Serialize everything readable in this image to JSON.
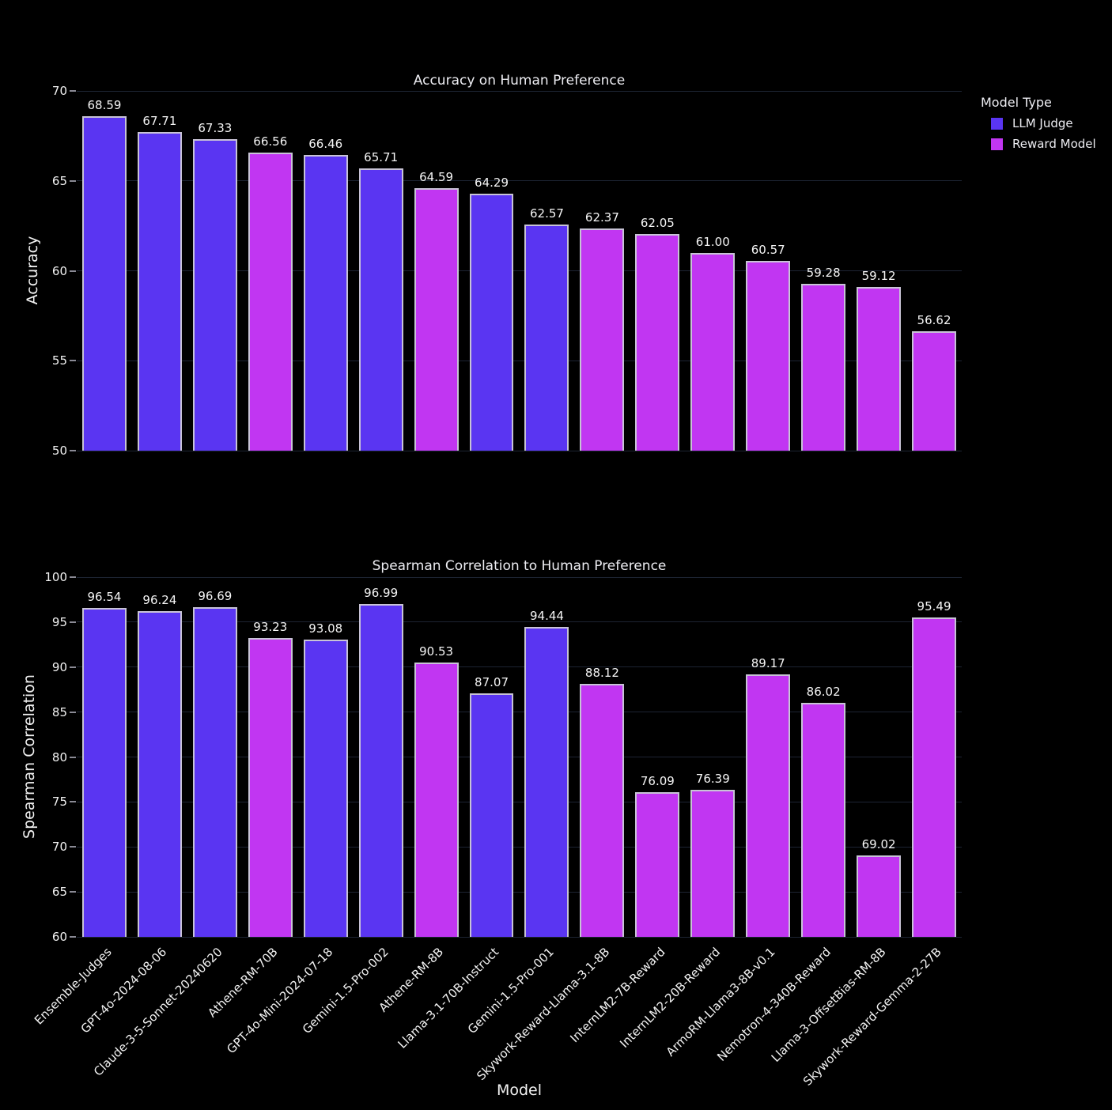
{
  "background": "#000000",
  "text_color": "#f2f2f2",
  "grid_color": "#1d2433",
  "legend": {
    "title": "Model Type",
    "items": [
      {
        "label": "LLM Judge",
        "color": "#5a35f2"
      },
      {
        "label": "Reward Model",
        "color": "#c136f2"
      }
    ]
  },
  "xlabel": "Model",
  "chart_data": [
    {
      "type": "bar",
      "title": "Accuracy on Human Preference",
      "xlabel": "",
      "ylabel": "Accuracy",
      "ylim": [
        50,
        70
      ],
      "yticks": [
        50,
        55,
        60,
        65,
        70
      ],
      "grid": true,
      "show_x_tick_labels": false,
      "categories": [
        "Ensemble-Judges",
        "GPT-4o-2024-08-06",
        "Claude-3-5-Sonnet-20240620",
        "Athene-RM-70B",
        "GPT-4o-Mini-2024-07-18",
        "Gemini-1.5-Pro-002",
        "Athene-RM-8B",
        "Llama-3.1-70B-Instruct",
        "Gemini-1.5-Pro-001",
        "Skywork-Reward-Llama-3.1-8B",
        "InternLM2-7B-Reward",
        "InternLM2-20B-Reward",
        "ArmoRM-Llama3-8B-v0.1",
        "Nemotron-4-340B-Reward",
        "Llama-3-OffsetBias-RM-8B",
        "Skywork-Reward-Gemma-2-27B"
      ],
      "types": [
        "LLM Judge",
        "LLM Judge",
        "LLM Judge",
        "Reward Model",
        "LLM Judge",
        "LLM Judge",
        "Reward Model",
        "LLM Judge",
        "LLM Judge",
        "Reward Model",
        "Reward Model",
        "Reward Model",
        "Reward Model",
        "Reward Model",
        "Reward Model",
        "Reward Model"
      ],
      "series": [
        {
          "name": "Accuracy",
          "values": [
            68.59,
            67.71,
            67.33,
            66.56,
            66.46,
            65.71,
            64.59,
            64.29,
            62.57,
            62.37,
            62.05,
            61.0,
            60.57,
            59.28,
            59.12,
            56.62
          ]
        }
      ],
      "legend_position": "top-right"
    },
    {
      "type": "bar",
      "title": "Spearman Correlation to Human Preference",
      "xlabel": "Model",
      "ylabel": "Spearman Correlation",
      "ylim": [
        60,
        100
      ],
      "yticks": [
        60,
        65,
        70,
        75,
        80,
        85,
        90,
        95,
        100
      ],
      "grid": true,
      "show_x_tick_labels": true,
      "categories": [
        "Ensemble-Judges",
        "GPT-4o-2024-08-06",
        "Claude-3-5-Sonnet-20240620",
        "Athene-RM-70B",
        "GPT-4o-Mini-2024-07-18",
        "Gemini-1.5-Pro-002",
        "Athene-RM-8B",
        "Llama-3.1-70B-Instruct",
        "Gemini-1.5-Pro-001",
        "Skywork-Reward-Llama-3.1-8B",
        "InternLM2-7B-Reward",
        "InternLM2-20B-Reward",
        "ArmoRM-Llama3-8B-v0.1",
        "Nemotron-4-340B-Reward",
        "Llama-3-OffsetBias-RM-8B",
        "Skywork-Reward-Gemma-2-27B"
      ],
      "types": [
        "LLM Judge",
        "LLM Judge",
        "LLM Judge",
        "Reward Model",
        "LLM Judge",
        "LLM Judge",
        "Reward Model",
        "LLM Judge",
        "LLM Judge",
        "Reward Model",
        "Reward Model",
        "Reward Model",
        "Reward Model",
        "Reward Model",
        "Reward Model",
        "Reward Model"
      ],
      "series": [
        {
          "name": "Spearman Correlation",
          "values": [
            96.54,
            96.24,
            96.69,
            93.23,
            93.08,
            96.99,
            90.53,
            87.07,
            94.44,
            88.12,
            76.09,
            76.39,
            89.17,
            86.02,
            69.02,
            95.49
          ]
        }
      ],
      "legend_position": "top-right"
    }
  ]
}
